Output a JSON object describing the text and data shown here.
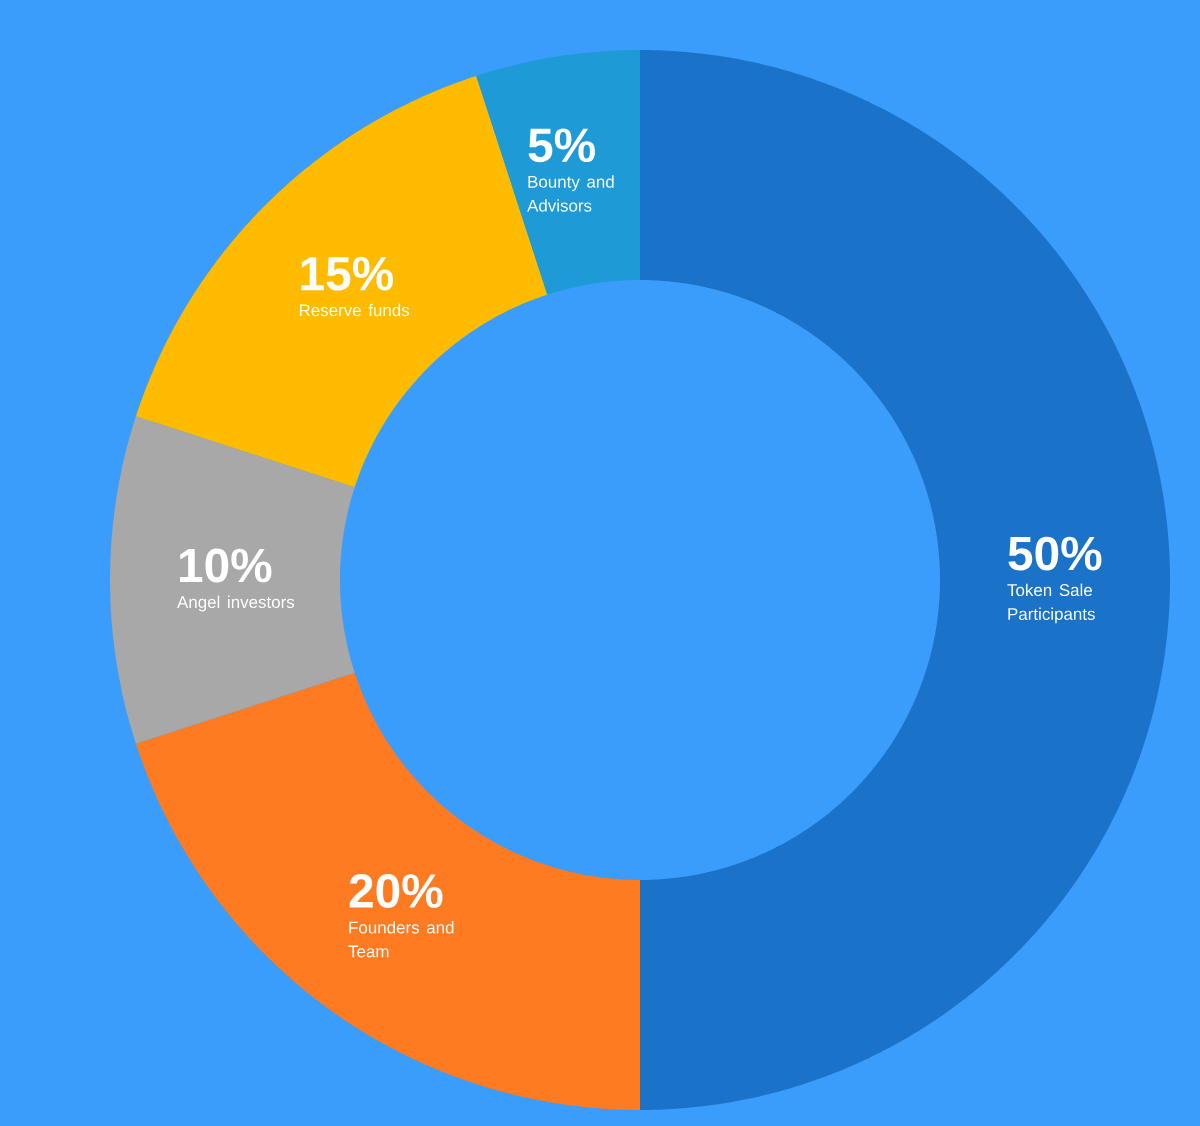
{
  "chart_data": {
    "type": "donut",
    "categories": [
      "Token Sale Participants",
      "Founders and Team",
      "Angel investors",
      "Reserve funds",
      "Bounty and Advisors"
    ],
    "values": [
      50,
      20,
      10,
      15,
      5
    ],
    "value_labels": [
      "50%",
      "20%",
      "10%",
      "15%",
      "5%"
    ],
    "colors": [
      "#1a73c9",
      "#ff7b22",
      "#a8a8a8",
      "#ffbb00",
      "#1e9ad6"
    ]
  }
}
